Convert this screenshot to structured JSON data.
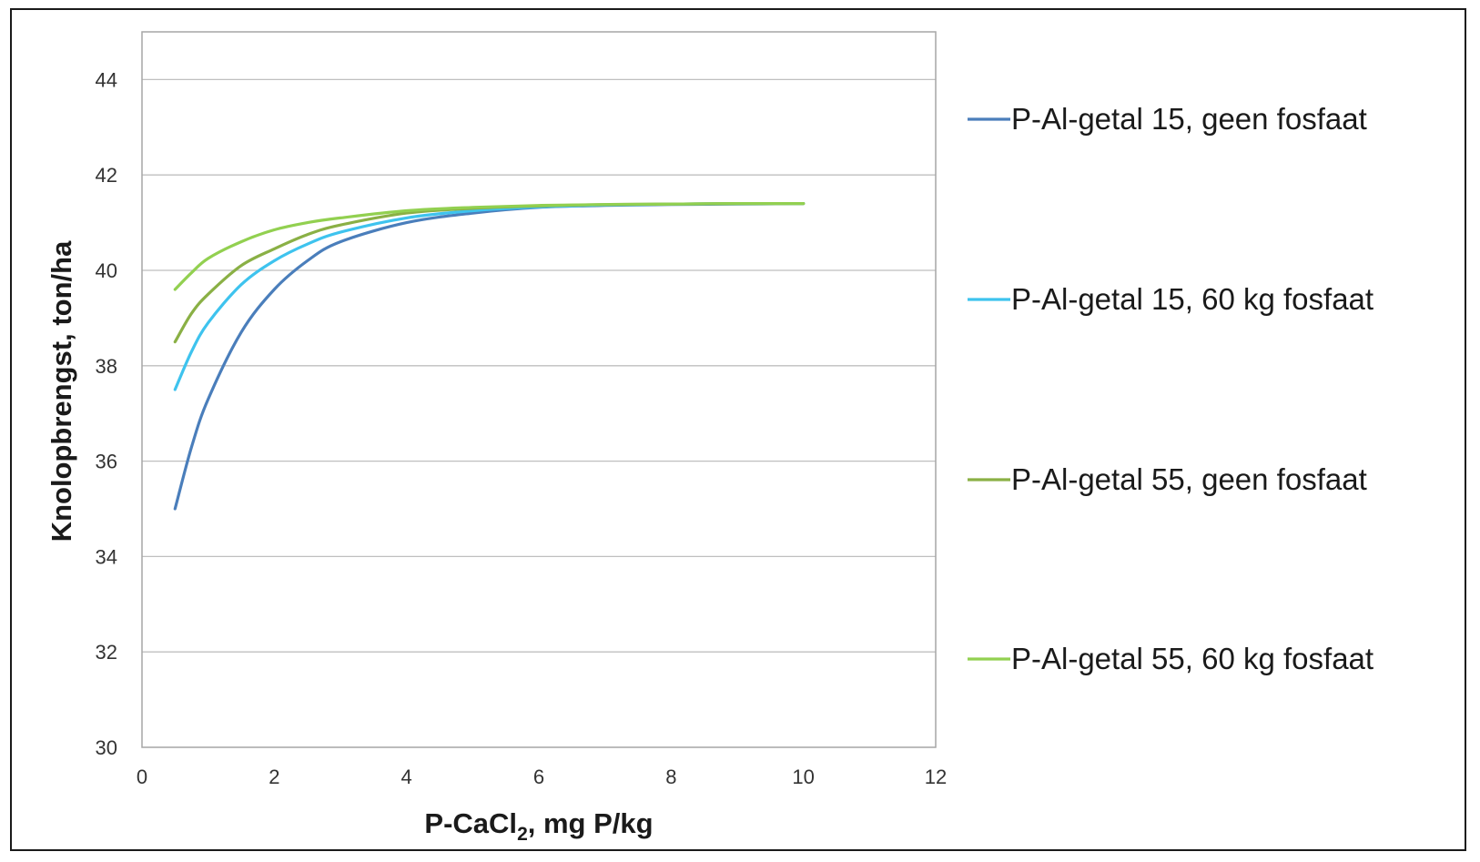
{
  "chart_data": {
    "type": "line",
    "title": "",
    "xlabel": {
      "main": "P-CaCl",
      "sub": "2",
      "rest": ", mg P/kg"
    },
    "ylabel": "Knolopbrengst, ton/ha",
    "xlim": [
      0,
      12
    ],
    "ylim": [
      30,
      45
    ],
    "x_ticks": [
      0,
      2,
      4,
      6,
      8,
      10,
      12
    ],
    "y_ticks": [
      30,
      32,
      34,
      36,
      38,
      40,
      42,
      44
    ],
    "grid": "horizontal",
    "legend_position": "right",
    "x": [
      0.5,
      0.75,
      1,
      1.5,
      2,
      2.5,
      3,
      4,
      5,
      6,
      7,
      8,
      9,
      10
    ],
    "series": [
      {
        "name": "P-Al-getal 15, geen fosfaat",
        "color": "#4a7ebb",
        "values": [
          35.0,
          36.3,
          37.3,
          38.7,
          39.6,
          40.2,
          40.6,
          41.0,
          41.2,
          41.32,
          41.36,
          41.38,
          41.39,
          41.4
        ]
      },
      {
        "name": "P-Al-getal 15, 60 kg fosfaat",
        "color": "#3ec3ee",
        "values": [
          37.5,
          38.3,
          38.9,
          39.7,
          40.2,
          40.55,
          40.8,
          41.1,
          41.25,
          41.33,
          41.37,
          41.39,
          41.4,
          41.4
        ]
      },
      {
        "name": "P-Al-getal 55, geen fosfaat",
        "color": "#8ab045",
        "values": [
          38.5,
          39.1,
          39.5,
          40.1,
          40.45,
          40.75,
          40.95,
          41.2,
          41.3,
          41.35,
          41.38,
          41.39,
          41.4,
          41.4
        ]
      },
      {
        "name": "P-Al-getal 55, 60 kg fosfaat",
        "color": "#92d050",
        "values": [
          39.6,
          39.95,
          40.25,
          40.6,
          40.85,
          41.0,
          41.1,
          41.25,
          41.32,
          41.36,
          41.38,
          41.39,
          41.4,
          41.4
        ]
      }
    ]
  }
}
